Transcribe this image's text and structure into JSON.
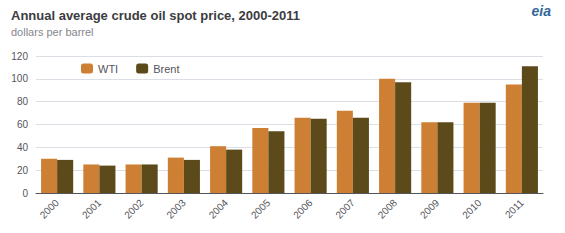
{
  "chart_data": {
    "type": "bar",
    "title": "Annual average crude oil spot price, 2000-2011",
    "subtitle": "dollars per barrel",
    "annotations": [
      "eia"
    ],
    "categories": [
      "2000",
      "2001",
      "2002",
      "2003",
      "2004",
      "2005",
      "2006",
      "2007",
      "2008",
      "2009",
      "2010",
      "2011"
    ],
    "series": [
      {
        "name": "WTI",
        "color": "#CD8033",
        "values": [
          30,
          25,
          25,
          31,
          41,
          57,
          66,
          72,
          100,
          62,
          79,
          95
        ]
      },
      {
        "name": "Brent",
        "color": "#5C4A1A",
        "values": [
          29,
          24,
          25,
          29,
          38,
          54,
          65,
          66,
          97,
          62,
          79,
          111
        ]
      }
    ],
    "ylim": [
      0,
      120
    ],
    "yticks": [
      0,
      20,
      40,
      60,
      80,
      100,
      120
    ],
    "grid": true,
    "legend": "upper left"
  }
}
